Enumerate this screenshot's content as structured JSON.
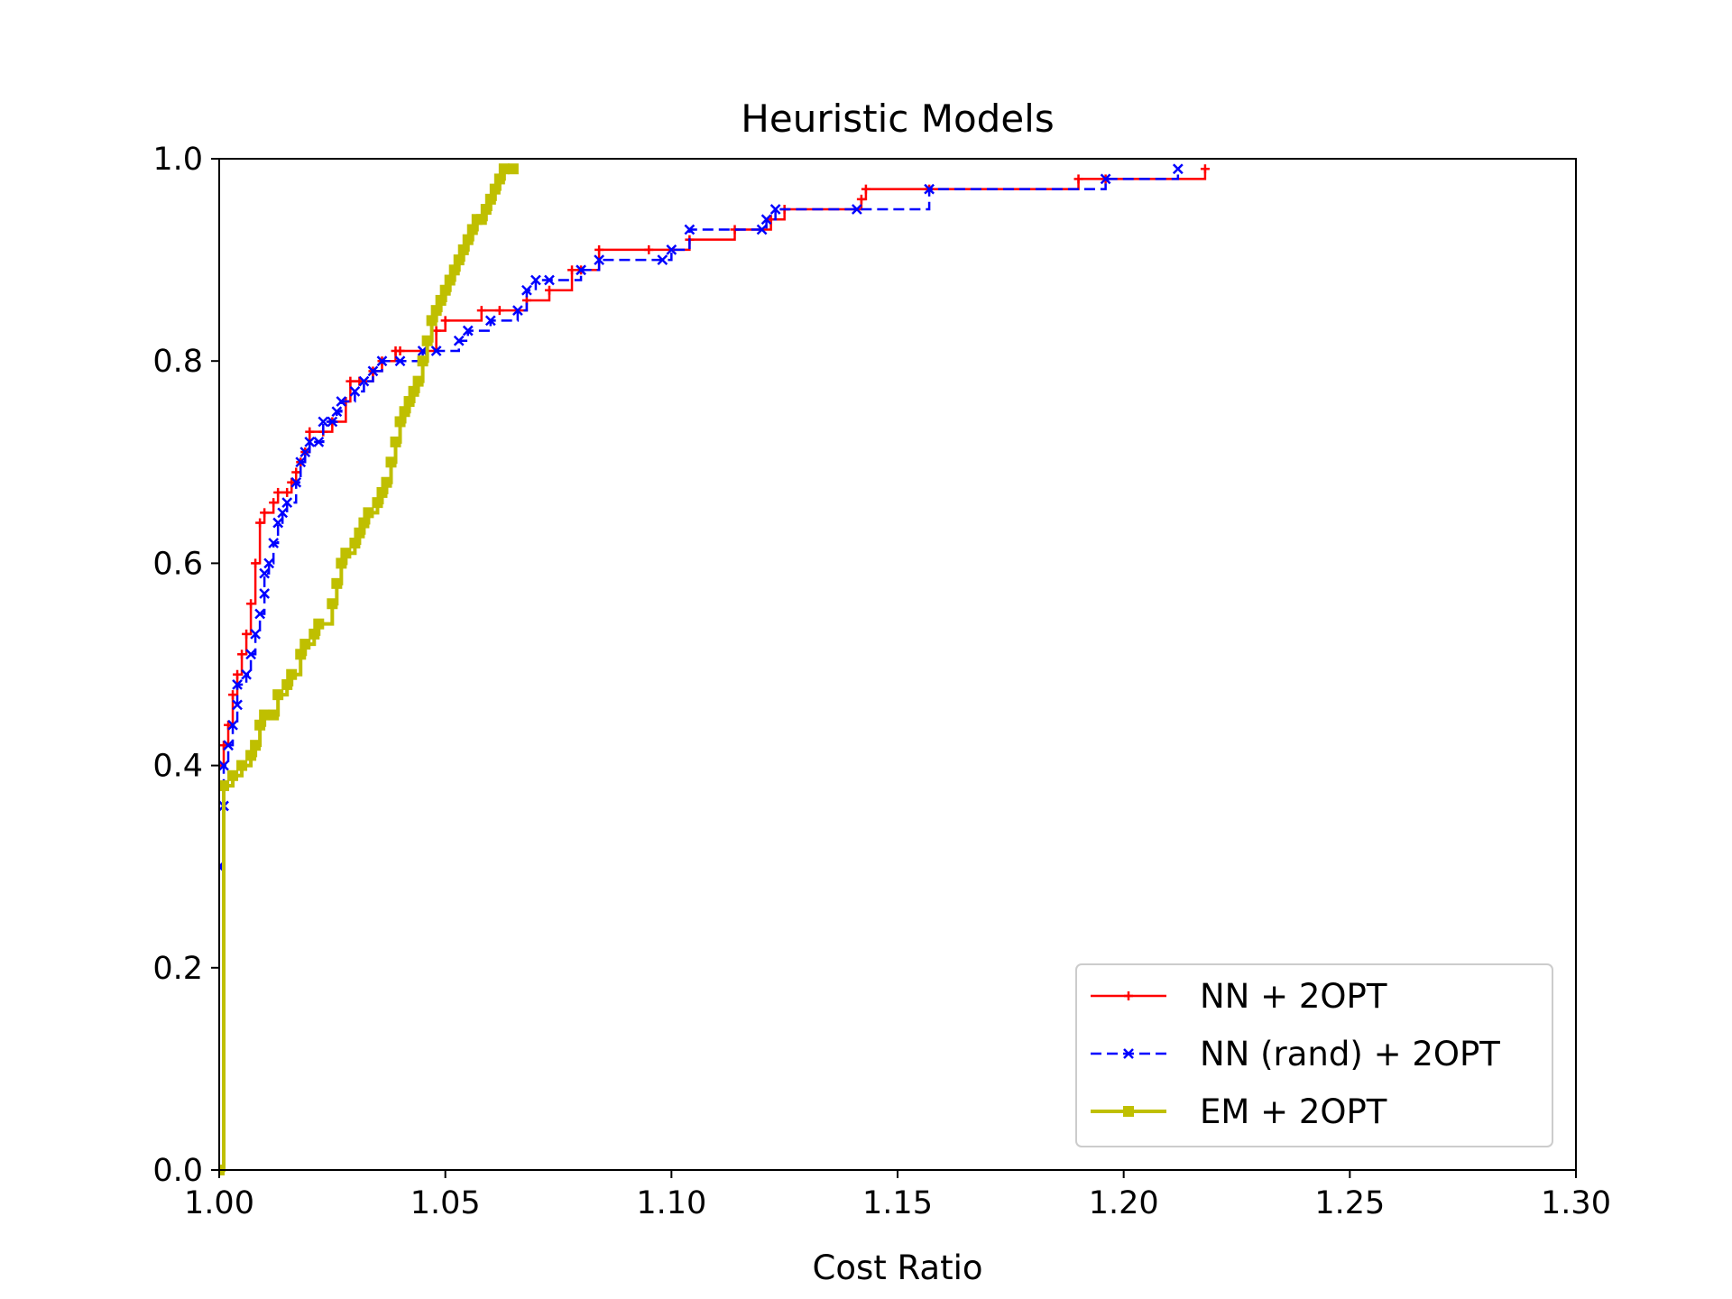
{
  "chart_data": {
    "type": "line",
    "subtype": "step (empirical CDF)",
    "title": "Heuristic Models",
    "xlabel": "Cost Ratio",
    "ylabel": "",
    "xlim": [
      1.0,
      1.3
    ],
    "ylim": [
      0.0,
      1.0
    ],
    "x_ticks": [
      "1.00",
      "1.05",
      "1.10",
      "1.15",
      "1.20",
      "1.25",
      "1.30"
    ],
    "y_ticks": [
      "0.0",
      "0.2",
      "0.4",
      "0.6",
      "0.8",
      "1.0"
    ],
    "grid": false,
    "legend_position": "lower-right",
    "series": [
      {
        "name": "NN + 2OPT",
        "color": "#ff0000",
        "line_style": "solid",
        "marker": "plus",
        "points": [
          [
            1.0,
            0.4
          ],
          [
            1.001,
            0.42
          ],
          [
            1.002,
            0.44
          ],
          [
            1.003,
            0.47
          ],
          [
            1.004,
            0.49
          ],
          [
            1.005,
            0.51
          ],
          [
            1.006,
            0.53
          ],
          [
            1.007,
            0.56
          ],
          [
            1.008,
            0.6
          ],
          [
            1.009,
            0.64
          ],
          [
            1.01,
            0.65
          ],
          [
            1.012,
            0.66
          ],
          [
            1.013,
            0.67
          ],
          [
            1.015,
            0.67
          ],
          [
            1.016,
            0.68
          ],
          [
            1.017,
            0.69
          ],
          [
            1.018,
            0.7
          ],
          [
            1.019,
            0.71
          ],
          [
            1.02,
            0.73
          ],
          [
            1.023,
            0.73
          ],
          [
            1.025,
            0.74
          ],
          [
            1.028,
            0.76
          ],
          [
            1.029,
            0.78
          ],
          [
            1.031,
            0.78
          ],
          [
            1.034,
            0.79
          ],
          [
            1.036,
            0.8
          ],
          [
            1.039,
            0.81
          ],
          [
            1.04,
            0.81
          ],
          [
            1.048,
            0.83
          ],
          [
            1.05,
            0.84
          ],
          [
            1.058,
            0.85
          ],
          [
            1.062,
            0.85
          ],
          [
            1.068,
            0.86
          ],
          [
            1.073,
            0.87
          ],
          [
            1.078,
            0.89
          ],
          [
            1.08,
            0.89
          ],
          [
            1.084,
            0.91
          ],
          [
            1.095,
            0.91
          ],
          [
            1.104,
            0.92
          ],
          [
            1.114,
            0.93
          ],
          [
            1.122,
            0.94
          ],
          [
            1.125,
            0.95
          ],
          [
            1.142,
            0.96
          ],
          [
            1.143,
            0.97
          ],
          [
            1.157,
            0.97
          ],
          [
            1.19,
            0.98
          ],
          [
            1.196,
            0.98
          ],
          [
            1.218,
            0.99
          ]
        ]
      },
      {
        "name": "NN (rand) + 2OPT",
        "color": "#0000ff",
        "line_style": "dashed",
        "marker": "x",
        "points": [
          [
            1.0,
            0.3
          ],
          [
            1.001,
            0.36
          ],
          [
            1.001,
            0.4
          ],
          [
            1.002,
            0.42
          ],
          [
            1.003,
            0.44
          ],
          [
            1.004,
            0.46
          ],
          [
            1.004,
            0.48
          ],
          [
            1.006,
            0.49
          ],
          [
            1.007,
            0.51
          ],
          [
            1.008,
            0.53
          ],
          [
            1.009,
            0.55
          ],
          [
            1.01,
            0.57
          ],
          [
            1.01,
            0.59
          ],
          [
            1.011,
            0.6
          ],
          [
            1.012,
            0.62
          ],
          [
            1.013,
            0.64
          ],
          [
            1.014,
            0.65
          ],
          [
            1.015,
            0.66
          ],
          [
            1.017,
            0.68
          ],
          [
            1.018,
            0.7
          ],
          [
            1.019,
            0.71
          ],
          [
            1.02,
            0.72
          ],
          [
            1.022,
            0.72
          ],
          [
            1.023,
            0.74
          ],
          [
            1.025,
            0.74
          ],
          [
            1.026,
            0.75
          ],
          [
            1.027,
            0.76
          ],
          [
            1.03,
            0.77
          ],
          [
            1.032,
            0.78
          ],
          [
            1.034,
            0.79
          ],
          [
            1.036,
            0.8
          ],
          [
            1.04,
            0.8
          ],
          [
            1.045,
            0.81
          ],
          [
            1.048,
            0.81
          ],
          [
            1.053,
            0.82
          ],
          [
            1.055,
            0.83
          ],
          [
            1.06,
            0.84
          ],
          [
            1.066,
            0.85
          ],
          [
            1.068,
            0.87
          ],
          [
            1.07,
            0.88
          ],
          [
            1.073,
            0.88
          ],
          [
            1.08,
            0.89
          ],
          [
            1.084,
            0.9
          ],
          [
            1.098,
            0.9
          ],
          [
            1.1,
            0.91
          ],
          [
            1.104,
            0.93
          ],
          [
            1.12,
            0.93
          ],
          [
            1.121,
            0.94
          ],
          [
            1.123,
            0.95
          ],
          [
            1.141,
            0.95
          ],
          [
            1.157,
            0.97
          ],
          [
            1.196,
            0.98
          ],
          [
            1.212,
            0.99
          ]
        ]
      },
      {
        "name": "EM + 2OPT",
        "color": "#bfbf00",
        "line_style": "solid",
        "marker": "square",
        "points": [
          [
            1.0,
            0.0
          ],
          [
            1.001,
            0.38
          ],
          [
            1.003,
            0.39
          ],
          [
            1.005,
            0.4
          ],
          [
            1.007,
            0.41
          ],
          [
            1.008,
            0.42
          ],
          [
            1.009,
            0.44
          ],
          [
            1.01,
            0.45
          ],
          [
            1.012,
            0.45
          ],
          [
            1.013,
            0.47
          ],
          [
            1.015,
            0.48
          ],
          [
            1.016,
            0.49
          ],
          [
            1.018,
            0.51
          ],
          [
            1.019,
            0.52
          ],
          [
            1.021,
            0.53
          ],
          [
            1.022,
            0.54
          ],
          [
            1.025,
            0.56
          ],
          [
            1.026,
            0.58
          ],
          [
            1.027,
            0.6
          ],
          [
            1.028,
            0.61
          ],
          [
            1.03,
            0.62
          ],
          [
            1.031,
            0.63
          ],
          [
            1.032,
            0.64
          ],
          [
            1.033,
            0.65
          ],
          [
            1.035,
            0.66
          ],
          [
            1.036,
            0.67
          ],
          [
            1.037,
            0.68
          ],
          [
            1.038,
            0.7
          ],
          [
            1.039,
            0.72
          ],
          [
            1.04,
            0.74
          ],
          [
            1.041,
            0.75
          ],
          [
            1.042,
            0.76
          ],
          [
            1.043,
            0.77
          ],
          [
            1.044,
            0.78
          ],
          [
            1.045,
            0.8
          ],
          [
            1.046,
            0.82
          ],
          [
            1.047,
            0.84
          ],
          [
            1.048,
            0.85
          ],
          [
            1.049,
            0.86
          ],
          [
            1.05,
            0.87
          ],
          [
            1.051,
            0.88
          ],
          [
            1.052,
            0.89
          ],
          [
            1.053,
            0.9
          ],
          [
            1.054,
            0.91
          ],
          [
            1.055,
            0.92
          ],
          [
            1.056,
            0.93
          ],
          [
            1.057,
            0.94
          ],
          [
            1.058,
            0.94
          ],
          [
            1.059,
            0.95
          ],
          [
            1.06,
            0.96
          ],
          [
            1.061,
            0.97
          ],
          [
            1.062,
            0.98
          ],
          [
            1.063,
            0.99
          ],
          [
            1.065,
            0.99
          ]
        ]
      }
    ]
  }
}
